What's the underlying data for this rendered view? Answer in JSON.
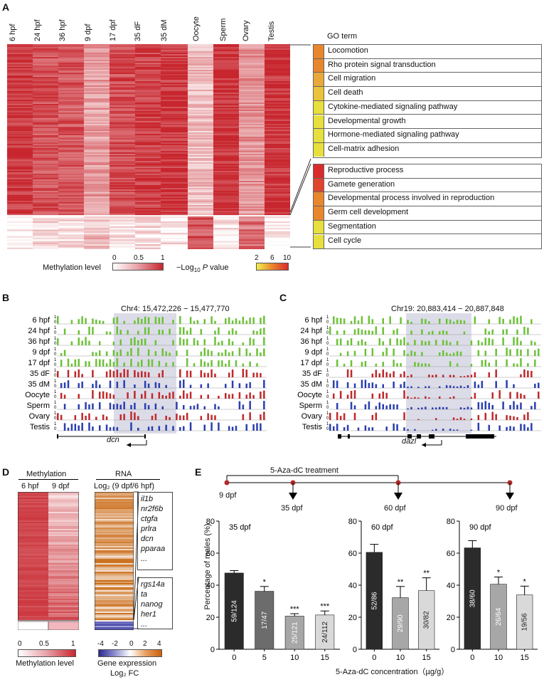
{
  "panelA": {
    "letter": "A",
    "columns": [
      "6 hpf",
      "24 hpf",
      "36 hpf",
      "9 dpf",
      "17 dpf",
      "35 dF",
      "35 dM",
      "Oocyte",
      "Sperm",
      "Ovary",
      "Testis"
    ],
    "go_header": "GO term",
    "go_terms_top": [
      {
        "label": "Locomotion",
        "color": "#e8862c"
      },
      {
        "label": "Rho protein signal transduction",
        "color": "#e8862c"
      },
      {
        "label": "Cell migration",
        "color": "#e9a83a"
      },
      {
        "label": "Cell death",
        "color": "#e9c33a"
      },
      {
        "label": "Cytokine-mediated signaling pathway",
        "color": "#e6df3c"
      },
      {
        "label": "Developmental growth",
        "color": "#e6df3c"
      },
      {
        "label": "Hormone-mediated signaling pathway",
        "color": "#e6df3c"
      },
      {
        "label": "Cell-matrix adhesion",
        "color": "#e6df3c"
      }
    ],
    "go_terms_bottom": [
      {
        "label": "Reproductive process",
        "color": "#d92b2b"
      },
      {
        "label": "Gamete generation",
        "color": "#e0442c"
      },
      {
        "label": "Developmental process involved in reproduction",
        "color": "#e8862c"
      },
      {
        "label": "Germ cell development",
        "color": "#e8862c"
      },
      {
        "label": "Segmentation",
        "color": "#e6df3c"
      },
      {
        "label": "Cell cycle",
        "color": "#e6df3c"
      }
    ],
    "meth_legend": {
      "label": "Methylation level",
      "ticks": [
        "0",
        "0.5",
        "1"
      ]
    },
    "pval_legend": {
      "label_prefix": "−Log",
      "label_sub": "10",
      "label_mid": " P",
      "label_suffix": " value",
      "ticks": [
        "2",
        "6",
        "10"
      ]
    }
  },
  "panelB": {
    "letter": "B",
    "coords": "Chr4: 15,472,226 − 15,477,770",
    "gene": "dcn",
    "tracks": [
      "6 hpf",
      "24 hpf",
      "36 hpf",
      "9 dpf",
      "17 dpf",
      "35 dF",
      "35 dM",
      "Oocyte",
      "Sperm",
      "Ovary",
      "Testis"
    ],
    "scale_top": "1",
    "scale_bottom": "0"
  },
  "panelC": {
    "letter": "C",
    "coords": "Chr19: 20,883,414 − 20,887,848",
    "gene": "dazl",
    "tracks": [
      "6 hpf",
      "24 hpf",
      "36 hpf",
      "9 dpf",
      "17 dpf",
      "35 dF",
      "35 dM",
      "Oocyte",
      "Sperm",
      "Ovary",
      "Testis"
    ],
    "scale_top": "1",
    "scale_bottom": "0"
  },
  "panelD": {
    "letter": "D",
    "meth_title": "Methylation",
    "meth_cols": [
      "6 hpf",
      "9 dpf"
    ],
    "rna_title": "RNA",
    "rna_sub": "Log₂ (9 dpf/6 hpf)",
    "genes_up": [
      "il1b",
      "nr2f6b",
      "ctgfa",
      "prlra",
      "dcn",
      "pparaa",
      "..."
    ],
    "genes_down": [
      "rgs14a",
      "ta",
      "nanog",
      "her1",
      "..."
    ],
    "meth_legend": {
      "label": "Methylation level",
      "ticks": [
        "0",
        "0.5",
        "1"
      ]
    },
    "expr_legend": {
      "label1": "Gene expression",
      "label2": "Log₂ FC",
      "ticks": [
        "-4",
        "-2",
        "0",
        "2",
        "4"
      ]
    }
  },
  "panelE": {
    "letter": "E",
    "treatment": "5-Aza-dC  treatment",
    "timeline": [
      "9 dpf",
      "35 dpf",
      "60 dpf",
      "90 dpf"
    ],
    "ylabel": "Percentage of males (%)",
    "xlabel": "5-Aza-dC concentration（µg/g）"
  },
  "chart_data": [
    {
      "type": "bar",
      "title": "35 dpf",
      "xlabel": "5-Aza-dC concentration（µg/g）",
      "ylabel": "Percentage of males (%)",
      "ylim": [
        0,
        80
      ],
      "categories": [
        "0",
        "5",
        "10",
        "15"
      ],
      "values": [
        47.6,
        36.2,
        20.7,
        21.4
      ],
      "labels": [
        "59/124",
        "17/47",
        "25/121",
        "24/112"
      ],
      "significance": [
        "",
        "*",
        "***",
        "***"
      ],
      "colors": [
        "#2b2b2b",
        "#6c6c6c",
        "#a7a7a7",
        "#d9d9d9"
      ]
    },
    {
      "type": "bar",
      "title": "60 dpf",
      "ylim": [
        0,
        80
      ],
      "categories": [
        "0",
        "10",
        "15"
      ],
      "values": [
        60.5,
        32.2,
        36.6
      ],
      "labels": [
        "52/86",
        "29/90",
        "30/82"
      ],
      "significance": [
        "",
        "**",
        "**"
      ],
      "colors": [
        "#2b2b2b",
        "#a7a7a7",
        "#d9d9d9"
      ]
    },
    {
      "type": "bar",
      "title": "90 dpf",
      "ylim": [
        0,
        80
      ],
      "categories": [
        "0",
        "10",
        "15"
      ],
      "values": [
        63.3,
        40.6,
        33.9
      ],
      "labels": [
        "38/60",
        "26/64",
        "19/56"
      ],
      "significance": [
        "",
        "*",
        "*"
      ],
      "colors": [
        "#2b2b2b",
        "#a7a7a7",
        "#d9d9d9"
      ]
    }
  ],
  "axes": {
    "y_ticks": [
      "0",
      "20",
      "40",
      "60",
      "80"
    ]
  }
}
